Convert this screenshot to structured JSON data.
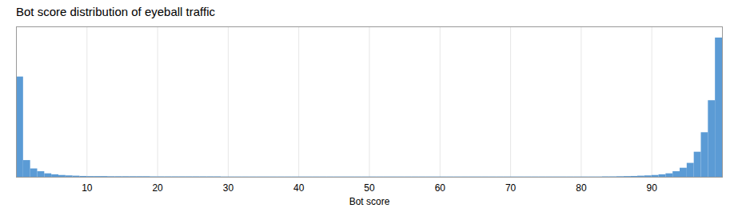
{
  "chart_data": {
    "type": "bar",
    "title": "Bot score distribution of eyeball traffic",
    "xlabel": "Bot score",
    "color": "#5B9BD5",
    "bins": [
      0,
      1,
      2,
      3,
      4,
      5,
      6,
      7,
      8,
      9,
      10,
      11,
      12,
      13,
      14,
      15,
      16,
      17,
      18,
      19,
      20,
      21,
      22,
      23,
      24,
      25,
      26,
      27,
      28,
      29,
      30,
      31,
      32,
      33,
      34,
      35,
      36,
      37,
      38,
      39,
      40,
      41,
      42,
      43,
      44,
      45,
      46,
      47,
      48,
      49,
      50,
      51,
      52,
      53,
      54,
      55,
      56,
      57,
      58,
      59,
      60,
      61,
      62,
      63,
      64,
      65,
      66,
      67,
      68,
      69,
      70,
      71,
      72,
      73,
      74,
      75,
      76,
      77,
      78,
      79,
      80,
      81,
      82,
      83,
      84,
      85,
      86,
      87,
      88,
      89,
      90,
      91,
      92,
      93,
      94,
      95,
      96,
      97,
      98,
      99,
      100
    ],
    "values": [
      0.72,
      0.12,
      0.06,
      0.04,
      0.025,
      0.018,
      0.013,
      0.01,
      0.008,
      0.006,
      0.005,
      0.005,
      0.005,
      0.004,
      0.004,
      0.004,
      0.004,
      0.004,
      0.004,
      0.003,
      0.003,
      0.003,
      0.003,
      0.003,
      0.003,
      0.003,
      0.003,
      0.003,
      0.003,
      0.002,
      0.002,
      0.002,
      0.002,
      0.002,
      0.002,
      0.002,
      0.002,
      0.002,
      0.002,
      0.002,
      0.002,
      0.002,
      0.002,
      0.002,
      0.002,
      0.002,
      0.002,
      0.002,
      0.002,
      0.002,
      0.002,
      0.002,
      0.002,
      0.002,
      0.002,
      0.002,
      0.002,
      0.002,
      0.002,
      0.002,
      0.002,
      0.002,
      0.002,
      0.002,
      0.002,
      0.002,
      0.002,
      0.002,
      0.002,
      0.002,
      0.002,
      0.002,
      0.002,
      0.002,
      0.002,
      0.002,
      0.002,
      0.002,
      0.002,
      0.002,
      0.002,
      0.002,
      0.002,
      0.003,
      0.003,
      0.004,
      0.005,
      0.006,
      0.008,
      0.01,
      0.013,
      0.018,
      0.025,
      0.04,
      0.065,
      0.1,
      0.18,
      0.32,
      0.55,
      1.0
    ],
    "xlim": [
      0,
      100
    ],
    "xticks": [
      10,
      20,
      30,
      40,
      50,
      60,
      70,
      80,
      90
    ],
    "ylim": [
      0,
      1.08
    ],
    "grid": "x",
    "tick_labels": "x"
  }
}
